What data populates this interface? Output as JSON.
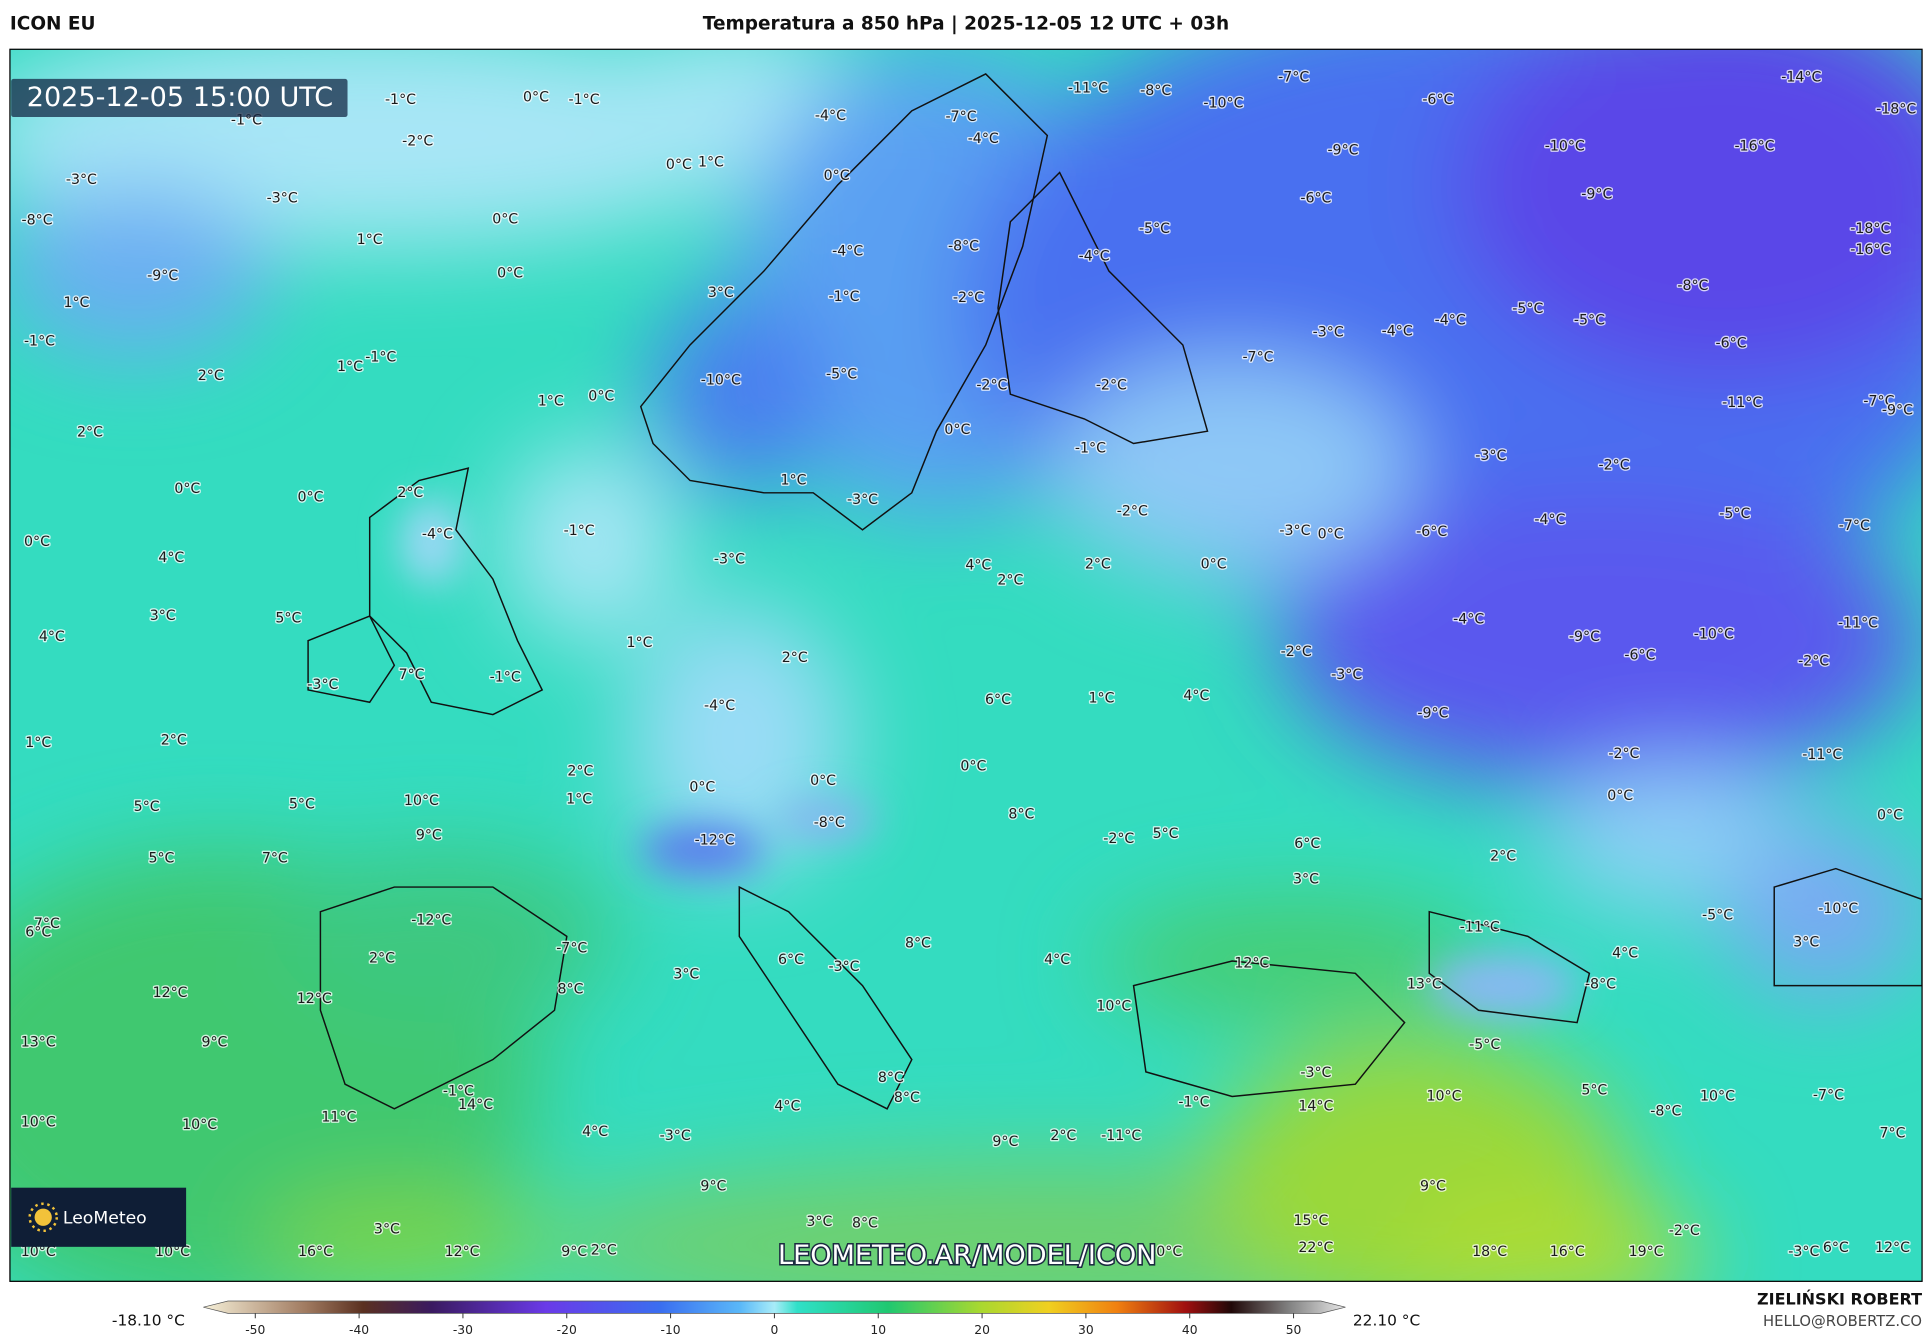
{
  "header": {
    "left": "ICON EU",
    "title": "Temperatura a 850 hPa | 2025-12-05 12 UTC + 03h"
  },
  "map": {
    "timestamp": "2025-12-05 15:00 UTC",
    "watermark": "LEOMETEO.AR/MODEL/ICON",
    "logo": "LeoMeteo",
    "labels": [
      "-1°C",
      "0°C",
      "-1°C",
      "-1°C",
      "-2°C",
      "0°C",
      "1°C",
      "-3°C",
      "-3°C",
      "0°C",
      "1°C",
      "-8°C",
      "-9°C",
      "0°C",
      "1°C",
      "-1°C",
      "2°C",
      "1°C",
      "-1°C",
      "1°C",
      "0°C",
      "2°C",
      "0°C",
      "0°C",
      "2°C",
      "-4°C",
      "-1°C",
      "0°C",
      "4°C",
      "3°C",
      "5°C",
      "4°C",
      "1°C",
      "-3°C",
      "7°C",
      "-1°C",
      "-4°C",
      "1°C",
      "2°C",
      "2°C",
      "1°C",
      "5°C",
      "5°C",
      "10°C",
      "9°C",
      "5°C",
      "7°C",
      "0°C",
      "-12°C",
      "-8°C",
      "7°C",
      "6°C",
      "-12°C",
      "2°C",
      "-7°C",
      "12°C",
      "12°C",
      "8°C",
      "3°C",
      "6°C",
      "-3°C",
      "8°C",
      "13°C",
      "9°C",
      "-1°C",
      "14°C",
      "11°C",
      "10°C",
      "10°C",
      "4°C",
      "-3°C",
      "4°C",
      "8°C",
      "8°C",
      "9°C",
      "2°C",
      "-11°C",
      "9°C",
      "3°C",
      "10°C",
      "10°C",
      "16°C",
      "12°C",
      "9°C",
      "2°C",
      "3°C",
      "8°C",
      "-4°C",
      "-7°C",
      "-4°C",
      "-11°C",
      "-8°C",
      "-10°C",
      "-7°C",
      "-6°C",
      "-9°C",
      "-10°C",
      "-14°C",
      "-18°C",
      "-16°C",
      "-9°C",
      "-6°C",
      "-18°C",
      "-16°C",
      "0°C",
      "-4°C",
      "-8°C",
      "-5°C",
      "-4°C",
      "-1°C",
      "-2°C",
      "3°C",
      "-8°C",
      "-5°C",
      "-5°C",
      "-4°C",
      "-4°C",
      "-3°C",
      "-6°C",
      "-7°C",
      "-10°C",
      "-5°C",
      "-2°C",
      "-2°C",
      "-11°C",
      "-7°C",
      "-9°C",
      "0°C",
      "-1°C",
      "1°C",
      "-3°C",
      "-3°C",
      "-2°C",
      "-2°C",
      "-3°C",
      "0°C",
      "-6°C",
      "-4°C",
      "-5°C",
      "-7°C",
      "-3°C",
      "4°C",
      "2°C",
      "2°C",
      "0°C",
      "-4°C",
      "-9°C",
      "-10°C",
      "-11°C",
      "-6°C",
      "-2°C",
      "-2°C",
      "-3°C",
      "2°C",
      "6°C",
      "1°C",
      "4°C",
      "-9°C",
      "-2°C",
      "-11°C",
      "0°C",
      "0°C",
      "8°C",
      "0°C",
      "0°C",
      "-2°C",
      "5°C",
      "6°C",
      "3°C",
      "2°C",
      "-5°C",
      "-10°C",
      "3°C",
      "-11°C",
      "12°C",
      "13°C",
      "4°C",
      "4°C",
      "-8°C",
      "10°C",
      "-5°C",
      "-3°C",
      "5°C",
      "10°C",
      "-7°C",
      "10°C",
      "-8°C",
      "-1°C",
      "14°C",
      "7°C",
      "9°C",
      "-2°C",
      "15°C",
      "22°C",
      "18°C",
      "16°C",
      "19°C",
      "-3°C",
      "6°C",
      "12°C",
      "0°C"
    ]
  },
  "colorbar": {
    "min_label": "-18.10 °C",
    "max_label": "22.10 °C",
    "range": [
      -55,
      55
    ],
    "ticks": [
      -50,
      -40,
      -30,
      -20,
      -10,
      0,
      10,
      20,
      30,
      40,
      50
    ]
  },
  "credits": {
    "author": "ZIELIŃSKI ROBERT",
    "email": "HELLO@ROBERTZ.CO"
  }
}
